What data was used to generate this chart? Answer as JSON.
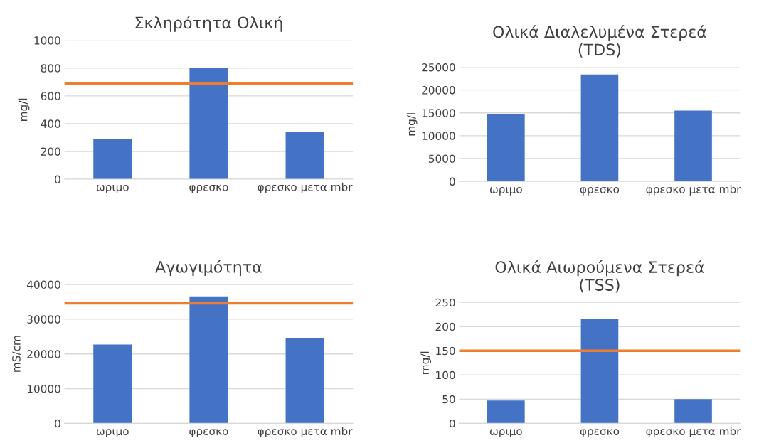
{
  "chart_data": [
    {
      "type": "bar",
      "title": "Σκληρότητα Ολική",
      "ylabel": "mg/l",
      "categories": [
        "ωριμο",
        "φρεσκο",
        "φρεσκο μετα mbr"
      ],
      "values": [
        290,
        800,
        340
      ],
      "color": "#4472c4",
      "ylim": [
        0,
        1000
      ],
      "yticks": [
        0,
        200,
        400,
        600,
        800,
        1000
      ],
      "grid": "y",
      "ref_lines": [
        {
          "axis": "y",
          "value": 690,
          "color": "#ed7d31"
        }
      ]
    },
    {
      "type": "bar",
      "title": "Ολικά Διαλελυμένα Στερεά\n(TDS)",
      "ylabel": "mg/l",
      "categories": [
        "ωριμο",
        "φρεσκο",
        "φρεσκο μετα mbr"
      ],
      "values": [
        14800,
        23400,
        15500
      ],
      "color": "#4472c4",
      "ylim": [
        0,
        25000
      ],
      "yticks": [
        0,
        5000,
        10000,
        15000,
        20000,
        25000
      ],
      "grid": "y"
    },
    {
      "type": "bar",
      "title": "Αγωγιμότητα",
      "ylabel": "mS/cm",
      "categories": [
        "ωριμο",
        "φρεσκο",
        "φρεσκο μετα mbr"
      ],
      "values": [
        22700,
        36600,
        24500
      ],
      "color": "#4472c4",
      "ylim": [
        0,
        40000
      ],
      "yticks": [
        0,
        10000,
        20000,
        30000,
        40000
      ],
      "grid": "y",
      "ref_lines": [
        {
          "axis": "y",
          "value": 34600,
          "color": "#ed7d31"
        }
      ]
    },
    {
      "type": "bar",
      "title": "Ολικά Αιωρούμενα Στερεά\n(TSS)",
      "ylabel": "mg/l",
      "categories": [
        "ωριμο",
        "φρεσκο",
        "φρεσκο μετα mbr"
      ],
      "values": [
        47,
        215,
        50
      ],
      "color": "#4472c4",
      "ylim": [
        0,
        250
      ],
      "yticks": [
        0,
        50,
        100,
        150,
        200,
        250
      ],
      "grid": "y",
      "ref_lines": [
        {
          "axis": "y",
          "value": 150,
          "color": "#ed7d31"
        }
      ]
    }
  ]
}
